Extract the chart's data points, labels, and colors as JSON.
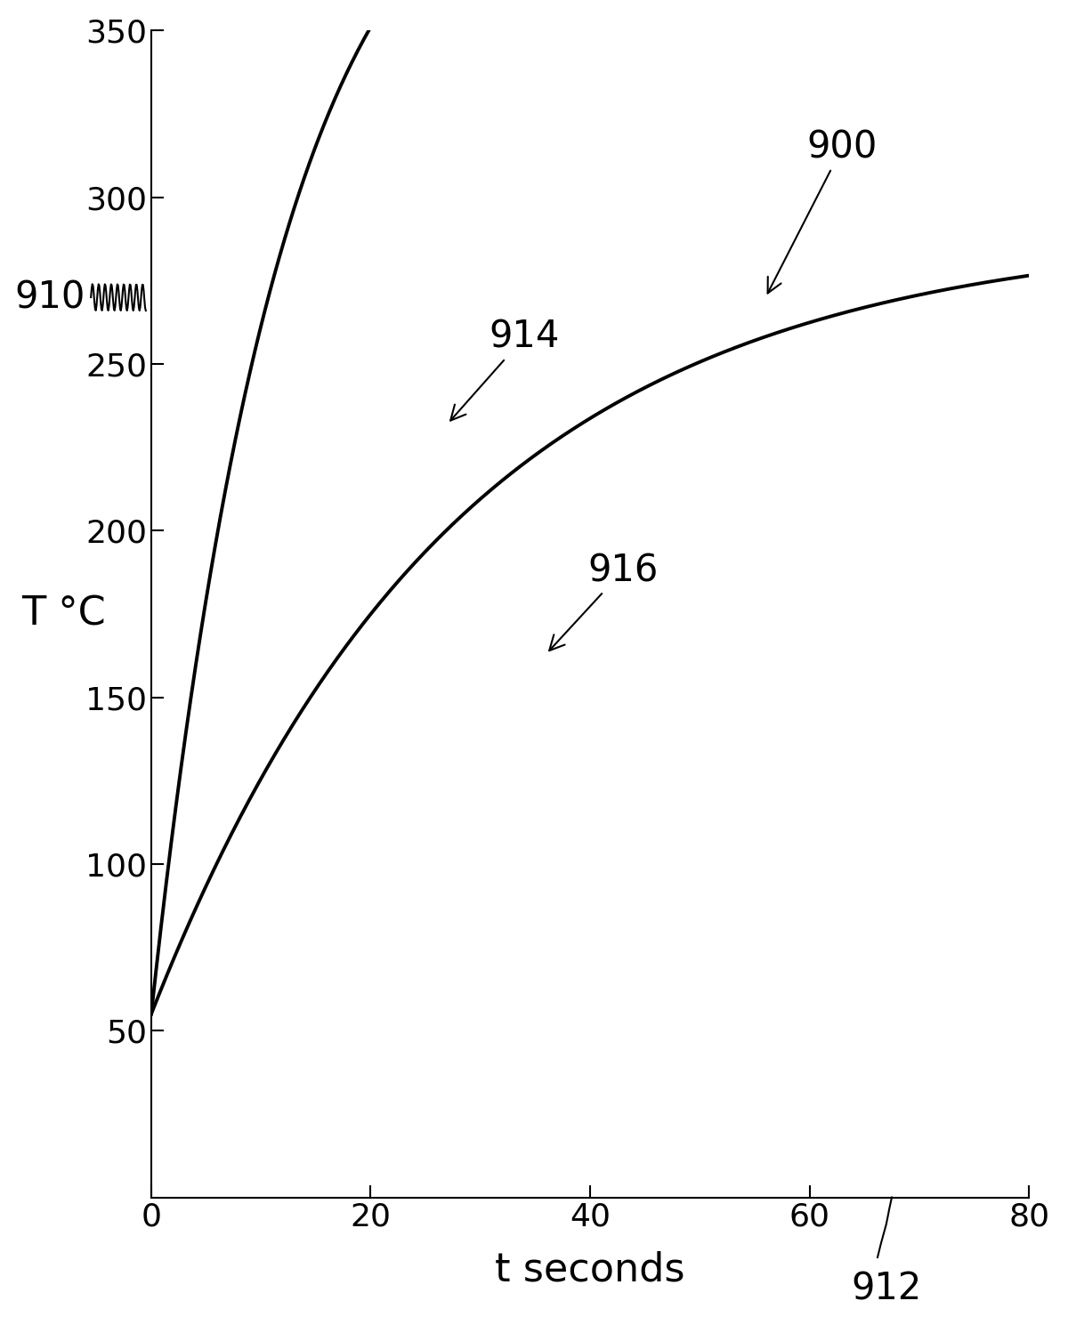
{
  "title": "",
  "xlabel": "t seconds",
  "ylabel": "T °C",
  "xlim": [
    0,
    80
  ],
  "ylim": [
    0,
    350
  ],
  "xticks": [
    0,
    20,
    40,
    60,
    80
  ],
  "yticks": [
    50,
    100,
    150,
    200,
    250,
    300,
    350
  ],
  "curve_start": 55,
  "curve914_tau": 12,
  "curve914_asymptote": 420,
  "curve914_end_x": 60,
  "curve916_tau": 28,
  "curve916_asymptote": 290,
  "curve916_end_x": 80,
  "line_color": "#000000",
  "background_color": "#ffffff",
  "label_900": "900",
  "label_910": "910",
  "label_912": "912",
  "label_914": "914",
  "label_916": "916",
  "fontsize_axis_label": 32,
  "fontsize_tick": 26,
  "fontsize_annotation": 30,
  "linewidth": 2.8
}
